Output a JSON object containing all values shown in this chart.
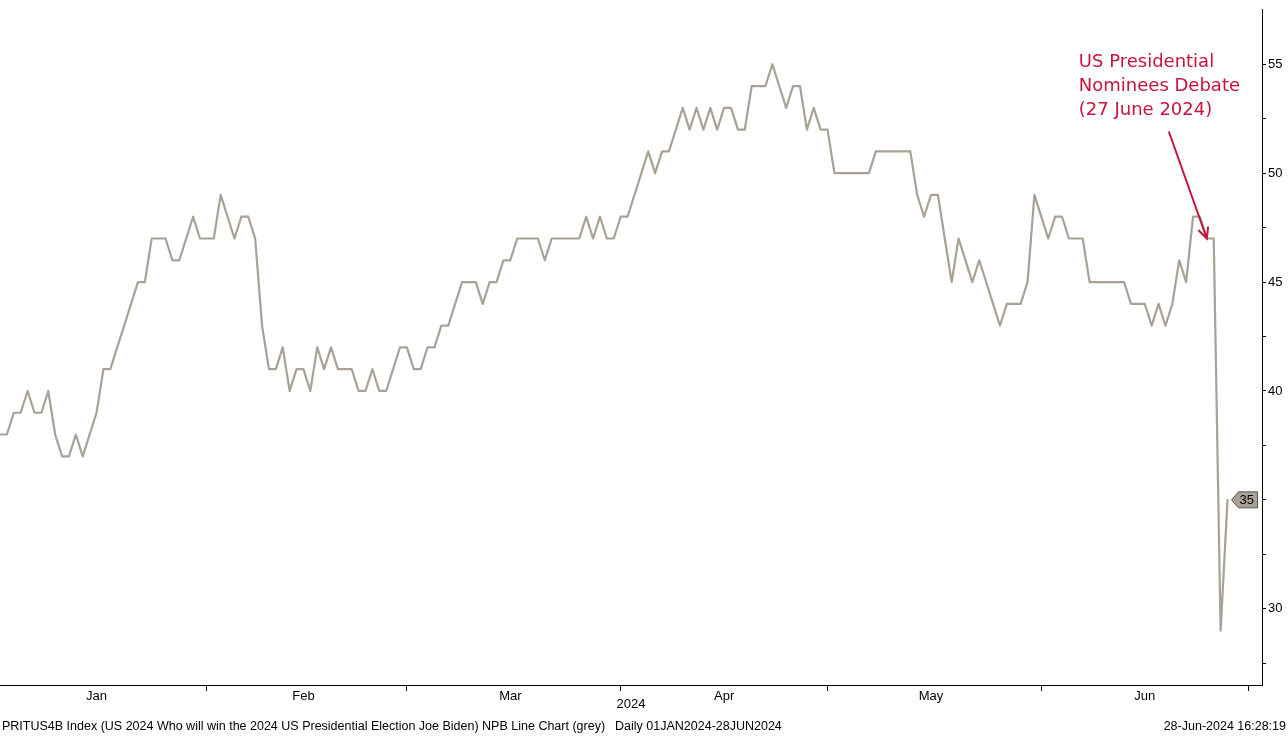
{
  "chart_data": {
    "type": "line",
    "xlabel": "2024",
    "x": [
      "2024-01-02",
      "2024-01-03",
      "2024-01-04",
      "2024-01-05",
      "2024-01-06",
      "2024-01-07",
      "2024-01-08",
      "2024-01-09",
      "2024-01-10",
      "2024-01-11",
      "2024-01-12",
      "2024-01-13",
      "2024-01-14",
      "2024-01-16",
      "2024-01-17",
      "2024-01-18",
      "2024-01-19",
      "2024-01-22",
      "2024-01-23",
      "2024-01-24",
      "2024-01-26",
      "2024-01-27",
      "2024-01-28",
      "2024-01-30",
      "2024-01-31",
      "2024-02-02",
      "2024-02-03",
      "2024-02-05",
      "2024-02-06",
      "2024-02-07",
      "2024-02-08",
      "2024-02-09",
      "2024-02-10",
      "2024-02-11",
      "2024-02-12",
      "2024-02-13",
      "2024-02-14",
      "2024-02-15",
      "2024-02-16",
      "2024-02-17",
      "2024-02-18",
      "2024-02-19",
      "2024-02-20",
      "2024-02-22",
      "2024-02-23",
      "2024-02-24",
      "2024-02-25",
      "2024-02-26",
      "2024-02-27",
      "2024-02-29",
      "2024-03-01",
      "2024-03-02",
      "2024-03-03",
      "2024-03-04",
      "2024-03-05",
      "2024-03-06",
      "2024-03-07",
      "2024-03-09",
      "2024-03-11",
      "2024-03-12",
      "2024-03-13",
      "2024-03-14",
      "2024-03-15",
      "2024-03-16",
      "2024-03-17",
      "2024-03-20",
      "2024-03-21",
      "2024-03-22",
      "2024-03-26",
      "2024-03-27",
      "2024-03-28",
      "2024-03-29",
      "2024-03-30",
      "2024-03-31",
      "2024-04-01",
      "2024-04-02",
      "2024-04-05",
      "2024-04-06",
      "2024-04-07",
      "2024-04-08",
      "2024-04-10",
      "2024-04-11",
      "2024-04-12",
      "2024-04-13",
      "2024-04-14",
      "2024-04-15",
      "2024-04-16",
      "2024-04-17",
      "2024-04-18",
      "2024-04-19",
      "2024-04-20",
      "2024-04-22",
      "2024-04-23",
      "2024-04-25",
      "2024-04-26",
      "2024-04-27",
      "2024-04-28",
      "2024-04-29",
      "2024-04-30",
      "2024-05-01",
      "2024-05-02",
      "2024-05-07",
      "2024-05-08",
      "2024-05-13",
      "2024-05-14",
      "2024-05-15",
      "2024-05-16",
      "2024-05-17",
      "2024-05-19",
      "2024-05-20",
      "2024-05-22",
      "2024-05-23",
      "2024-05-26",
      "2024-05-27",
      "2024-05-29",
      "2024-05-30",
      "2024-05-31",
      "2024-06-02",
      "2024-06-03",
      "2024-06-04",
      "2024-06-05",
      "2024-06-07",
      "2024-06-08",
      "2024-06-13",
      "2024-06-14",
      "2024-06-16",
      "2024-06-17",
      "2024-06-18",
      "2024-06-19",
      "2024-06-20",
      "2024-06-21",
      "2024-06-22",
      "2024-06-23",
      "2024-06-24",
      "2024-06-25",
      "2024-06-26",
      "2024-06-27",
      "2024-06-28"
    ],
    "series": [
      {
        "color": "#aaa196",
        "values": [
          38,
          38,
          39,
          39,
          40,
          39,
          39,
          40,
          38,
          37,
          37,
          38,
          37,
          39,
          41,
          41,
          42,
          45,
          45,
          47,
          47,
          46,
          46,
          48,
          47,
          47,
          49,
          47,
          48,
          48,
          47,
          43,
          41,
          41,
          42,
          40,
          41,
          41,
          40,
          42,
          41,
          42,
          41,
          41,
          40,
          40,
          41,
          40,
          40,
          42,
          42,
          41,
          41,
          42,
          42,
          43,
          43,
          45,
          45,
          44,
          45,
          45,
          46,
          46,
          47,
          47,
          46,
          47,
          47,
          48,
          47,
          48,
          47,
          47,
          48,
          48,
          51,
          50,
          51,
          51,
          53,
          52,
          53,
          52,
          53,
          52,
          53,
          53,
          52,
          52,
          54,
          54,
          55,
          53,
          54,
          54,
          52,
          53,
          52,
          52,
          50,
          50,
          51,
          51,
          49,
          48,
          49,
          49,
          45,
          47,
          45,
          46,
          43,
          44,
          44,
          45,
          49,
          47,
          48,
          48,
          47,
          47,
          45,
          45,
          44,
          44,
          43,
          44,
          43,
          44,
          46,
          45,
          48,
          48,
          47,
          47,
          29,
          35
        ],
        "value_labels": [
          null,
          null,
          null,
          null,
          null,
          null,
          null,
          null,
          null,
          null,
          null,
          null,
          null,
          null,
          null,
          null,
          null,
          null,
          null,
          null,
          null,
          null,
          null,
          null,
          null,
          null,
          null,
          null,
          null,
          null,
          null,
          null,
          null,
          null,
          null,
          null,
          null,
          null,
          null,
          null,
          null,
          null,
          null,
          null,
          null,
          null,
          null,
          null,
          null,
          null,
          null,
          null,
          null,
          null,
          null,
          null,
          null,
          null,
          null,
          null,
          null,
          null,
          null,
          null,
          null,
          null,
          null,
          null,
          null,
          null,
          null,
          null,
          null,
          null,
          null,
          null,
          null,
          null,
          null,
          null,
          null,
          null,
          null,
          null,
          null,
          null,
          null,
          null,
          null,
          null,
          null,
          null,
          null,
          null,
          null,
          null,
          null,
          null,
          null,
          null,
          null,
          null,
          null,
          null,
          null,
          null,
          null,
          null,
          null,
          null,
          null,
          null,
          null,
          null,
          null,
          null,
          null,
          null,
          null,
          null,
          null,
          null,
          null,
          null,
          null,
          null,
          null,
          null,
          null,
          null,
          null,
          null,
          null,
          null,
          null,
          null,
          null,
          "35"
        ]
      }
    ],
    "xlim": [
      "2024-01-02",
      "2024-07-03"
    ],
    "xticks": [
      {
        "value": "2024-01-16",
        "label": "Jan"
      },
      {
        "value": "2024-02-01",
        "label": null
      },
      {
        "value": "2024-02-15",
        "label": "Feb"
      },
      {
        "value": "2024-03-01",
        "label": null
      },
      {
        "value": "2024-03-16",
        "label": "Mar"
      },
      {
        "value": "2024-04-01",
        "label": null
      },
      {
        "value": "2024-04-16",
        "label": "Apr"
      },
      {
        "value": "2024-05-01",
        "label": null
      },
      {
        "value": "2024-05-16",
        "label": "May"
      },
      {
        "value": "2024-06-01",
        "label": null
      },
      {
        "value": "2024-06-16",
        "label": "Jun"
      },
      {
        "value": "2024-07-01",
        "label": null
      }
    ],
    "ylim": [
      26.5,
      57.5
    ],
    "yticks": [
      {
        "value": 27.5,
        "label": null
      },
      30,
      {
        "value": 32.5,
        "label": null
      },
      {
        "value": 35,
        "label": null
      },
      {
        "value": 37.5,
        "label": null
      },
      40,
      {
        "value": 42.5,
        "label": null
      },
      45,
      {
        "value": 47.5,
        "label": null
      },
      50,
      {
        "value": 52.5,
        "label": null
      },
      55
    ],
    "grid": false,
    "legend": false,
    "marker": "none",
    "line_style": "solid",
    "annotations": [
      {
        "text": "US Presidential Nominees Debate (27 June 2024)",
        "x": "2024-06-25",
        "y": 47
      },
      "PRITUS4B Index (US 2024 Who will win the 2024 US Presidential Election Joe Biden) NPB Line Chart (grey)",
      "Daily 01JAN2024-28JUN2024",
      "28-Jun-2024 16:28:19"
    ]
  }
}
